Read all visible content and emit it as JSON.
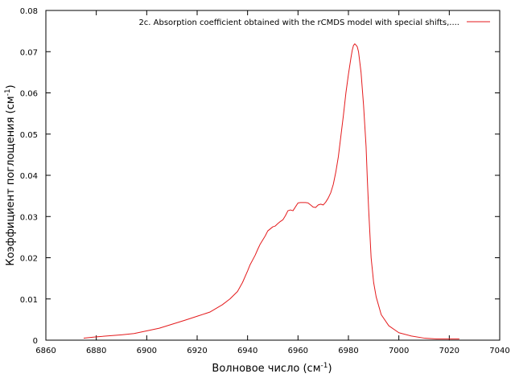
{
  "chart_data": {
    "type": "line",
    "title": "",
    "xlabel": "Волновое число (см",
    "xlabel_sup": "-1",
    "xlabel_suffix": ")",
    "ylabel": "Коэффициент поглощения (см",
    "ylabel_sup": "-1",
    "ylabel_suffix": ")",
    "xlim": [
      6860,
      7040
    ],
    "ylim": [
      0,
      0.08
    ],
    "x_ticks": [
      6860,
      6880,
      6900,
      6920,
      6940,
      6960,
      6980,
      7000,
      7020,
      7040
    ],
    "x_tick_labels": [
      "6860",
      "6880",
      "6900",
      "6920",
      "6940",
      "6960",
      "6980",
      "7000",
      "7020",
      "7040"
    ],
    "y_ticks": [
      0,
      0.01,
      0.02,
      0.03,
      0.04,
      0.05,
      0.06,
      0.07,
      0.08
    ],
    "y_tick_labels": [
      "0",
      "0.01",
      "0.02",
      "0.03",
      "0.04",
      "0.05",
      "0.06",
      "0.07",
      "0.08"
    ],
    "grid": false,
    "legend_position": "top-right",
    "series": [
      {
        "name": "2c. Absorption coefficient obtained with the rCMDS model with special shifts,....",
        "color": "#e41a1c",
        "x": [
          6875,
          6880,
          6890,
          6895,
          6905,
          6915,
          6920,
          6925,
          6930,
          6933,
          6936,
          6938,
          6940,
          6941,
          6943,
          6944,
          6945,
          6946,
          6947,
          6948,
          6950,
          6951,
          6952,
          6953,
          6954,
          6955,
          6956,
          6957,
          6958,
          6960,
          6961,
          6962,
          6963,
          6964,
          6965,
          6966,
          6967,
          6968,
          6969,
          6970,
          6971,
          6972,
          6973,
          6974,
          6975,
          6976,
          6977,
          6978,
          6979,
          6980,
          6981,
          6981.5,
          6982,
          6982.5,
          6983,
          6983.5,
          6984,
          6985,
          6986,
          6987,
          6987.5,
          6988,
          6988.5,
          6989,
          6990,
          6991,
          6993,
          6996,
          7000,
          7005,
          7010,
          7015,
          7020,
          7024
        ],
        "y": [
          0.0005,
          0.0008,
          0.0013,
          0.0016,
          0.0029,
          0.0048,
          0.0058,
          0.0068,
          0.0086,
          0.01,
          0.0118,
          0.014,
          0.0168,
          0.0183,
          0.0206,
          0.022,
          0.0233,
          0.0243,
          0.0253,
          0.0265,
          0.0275,
          0.0277,
          0.0283,
          0.0288,
          0.0292,
          0.0302,
          0.0314,
          0.0316,
          0.0314,
          0.0333,
          0.0334,
          0.0334,
          0.0334,
          0.0333,
          0.0328,
          0.0323,
          0.0322,
          0.0328,
          0.033,
          0.0328,
          0.0335,
          0.0345,
          0.0358,
          0.0378,
          0.0408,
          0.0445,
          0.0495,
          0.0545,
          0.06,
          0.0645,
          0.0685,
          0.0703,
          0.0715,
          0.0719,
          0.0716,
          0.0712,
          0.07,
          0.065,
          0.057,
          0.047,
          0.039,
          0.032,
          0.026,
          0.02,
          0.014,
          0.0105,
          0.0062,
          0.0035,
          0.0018,
          0.001,
          0.0005,
          0.0003,
          0.0003,
          0.0003
        ]
      }
    ]
  }
}
